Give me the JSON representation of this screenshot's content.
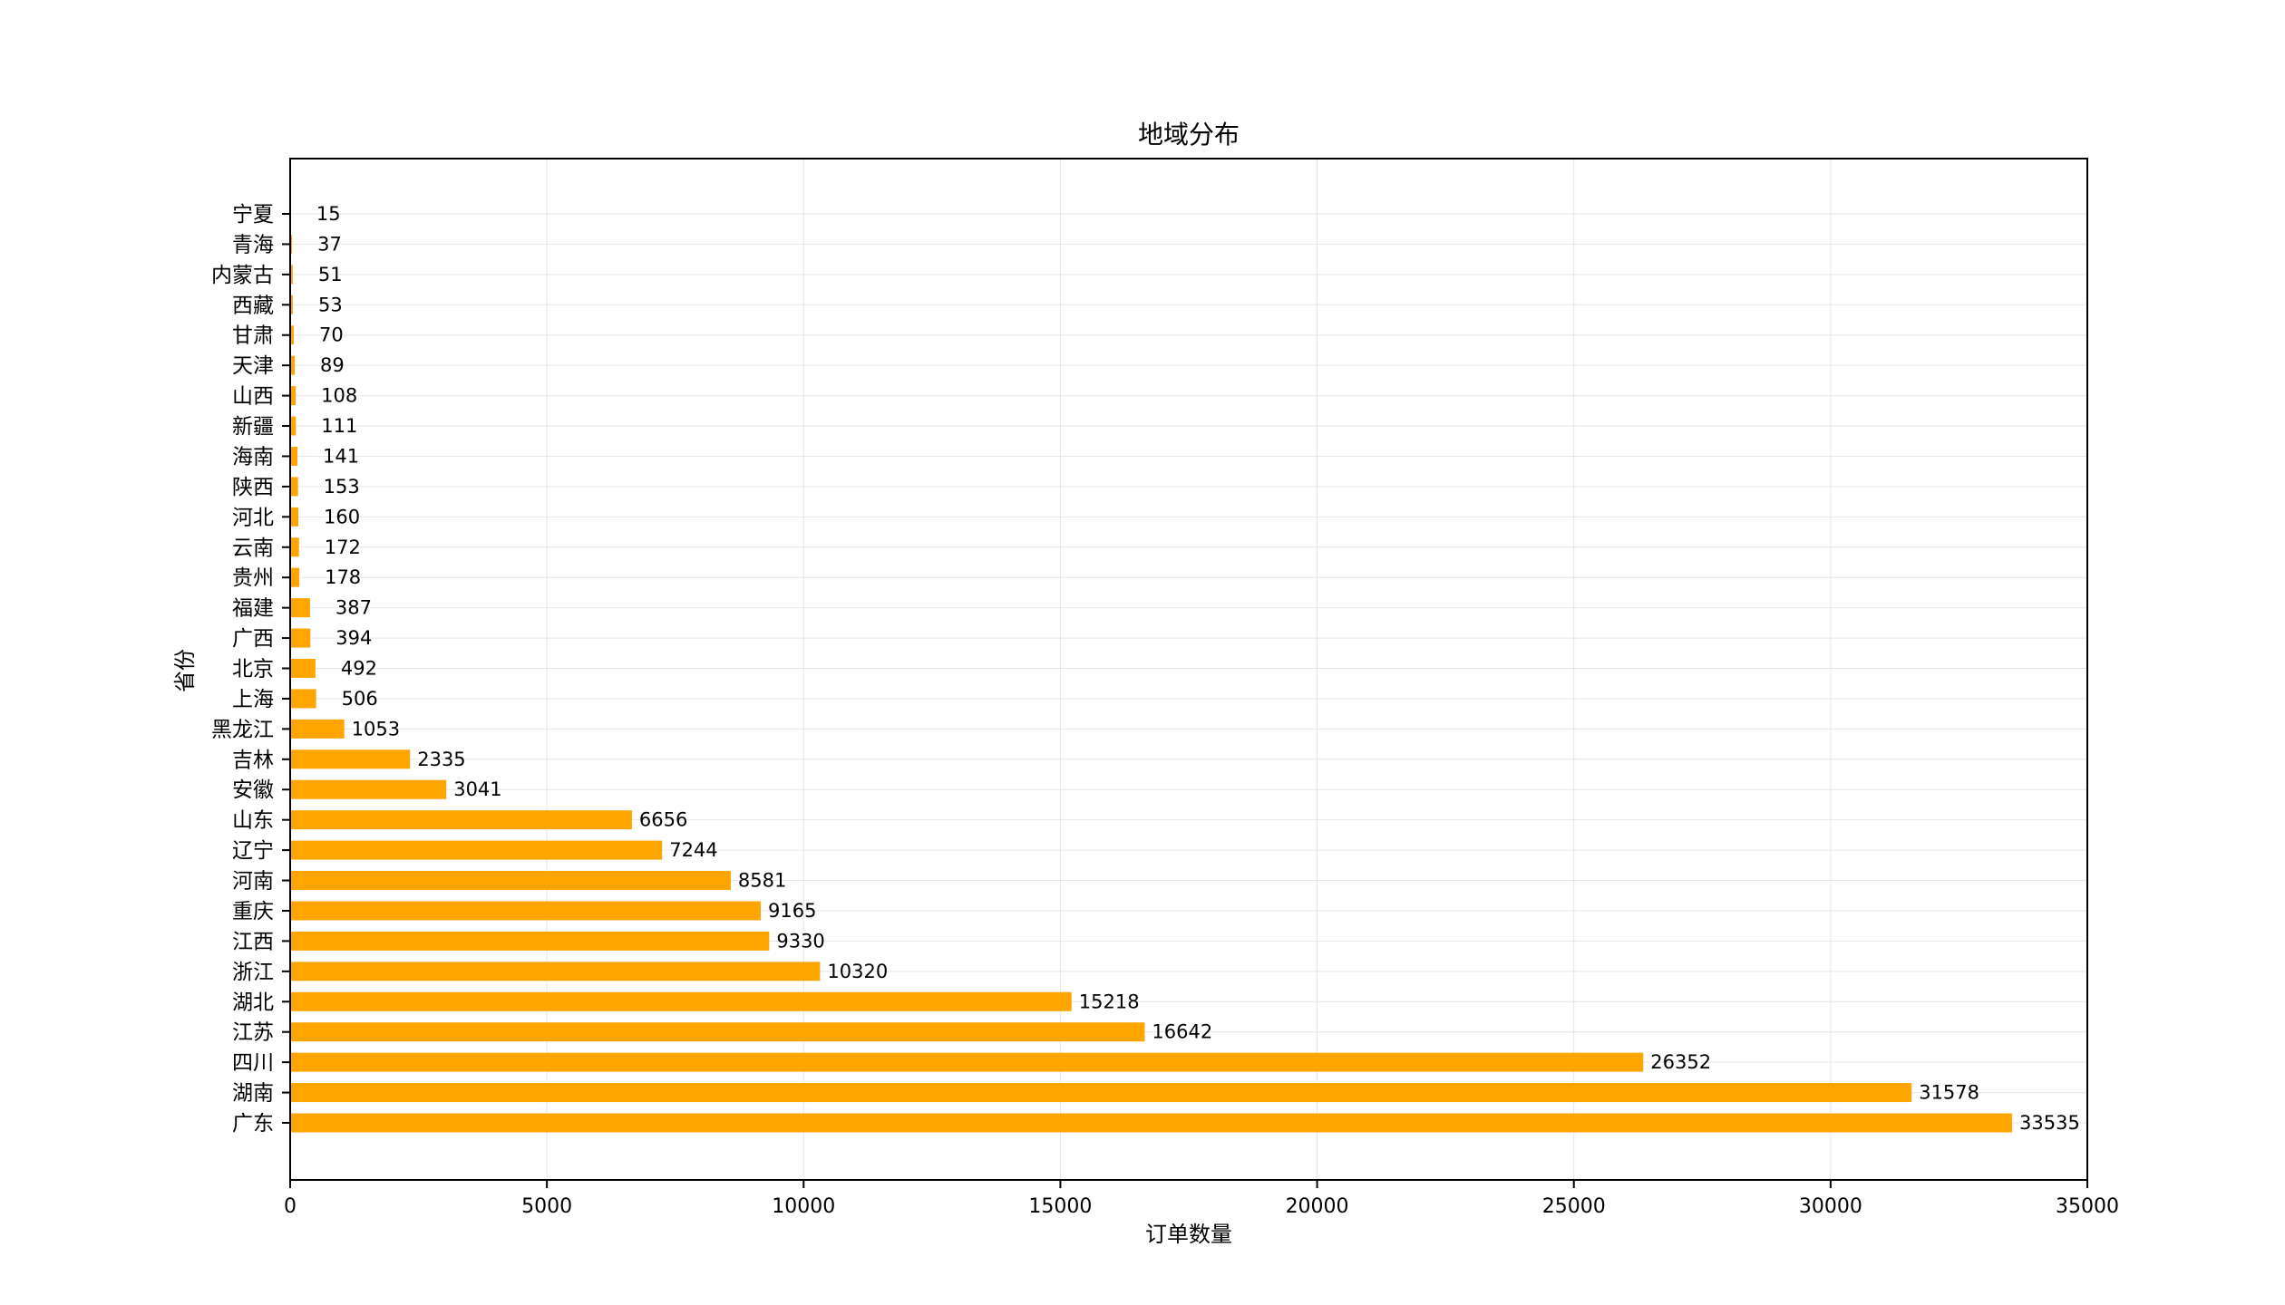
{
  "chart_data": {
    "type": "bar",
    "orientation": "horizontal",
    "title": "地域分布",
    "xlabel": "订单数量",
    "ylabel": "省份",
    "xlim": [
      0,
      35000
    ],
    "xticks": [
      0,
      5000,
      10000,
      15000,
      20000,
      25000,
      30000,
      35000
    ],
    "grid": true,
    "bar_color": "#FFA500",
    "categories": [
      "广东",
      "湖南",
      "四川",
      "江苏",
      "湖北",
      "浙江",
      "江西",
      "重庆",
      "河南",
      "辽宁",
      "山东",
      "安徽",
      "吉林",
      "黑龙江",
      "上海",
      "北京",
      "广西",
      "福建",
      "贵州",
      "云南",
      "河北",
      "陕西",
      "海南",
      "新疆",
      "山西",
      "天津",
      "甘肃",
      "西藏",
      "内蒙古",
      "青海",
      "宁夏"
    ],
    "values": [
      33535,
      31578,
      26352,
      16642,
      15218,
      10320,
      9330,
      9165,
      8581,
      7244,
      6656,
      3041,
      2335,
      1053,
      506,
      492,
      394,
      387,
      178,
      172,
      160,
      153,
      141,
      111,
      108,
      89,
      70,
      53,
      51,
      37,
      15
    ]
  }
}
